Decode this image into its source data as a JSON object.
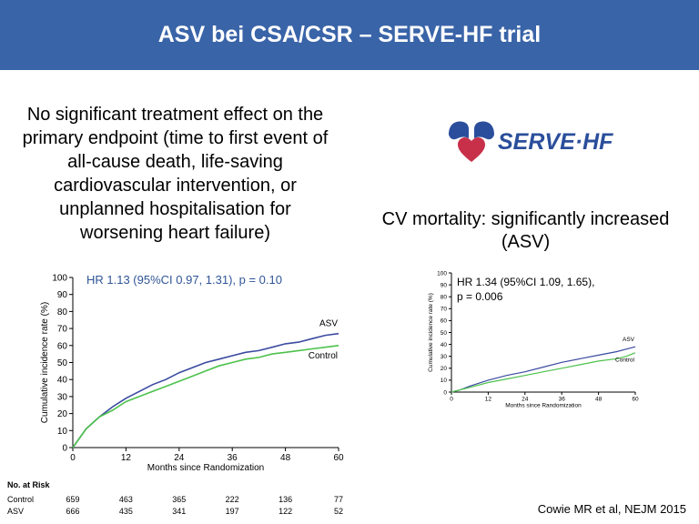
{
  "header": {
    "title": "ASV bei CSA/CSR – SERVE-HF trial"
  },
  "left_text": {
    "lines": [
      "No significant treatment effect on the",
      "primary endpoint (time to first event of",
      "all-cause death, life-saving",
      "cardiovascular intervention, or",
      "unplanned hospitalisation for",
      "worsening heart failure)"
    ]
  },
  "right_text": {
    "lines": [
      "CV mortality: significantly increased",
      "(ASV)"
    ]
  },
  "logo": {
    "text": "SERVE·HF"
  },
  "citation": "Cowie MR et al, NEJM 2015",
  "colors": {
    "header_bg": "#3a64a8",
    "asv": "#3b4aa0",
    "control": "#4cc24c",
    "annotation": "#2f5597",
    "logo_blue": "#2a4e9b",
    "logo_red": "#c8304a"
  },
  "chart_data": [
    {
      "type": "line",
      "annotation": "HR 1.13 (95%CI 0.97, 1.31), p = 0.10",
      "xlabel": "Months since Randomization",
      "ylabel": "Cumulative incidence rate (%)",
      "xlim": [
        0,
        60
      ],
      "ylim": [
        0,
        100
      ],
      "xticks": [
        0,
        12,
        24,
        36,
        48,
        60
      ],
      "yticks": [
        0,
        10,
        20,
        30,
        40,
        50,
        60,
        70,
        80,
        90,
        100
      ],
      "series": [
        {
          "name": "ASV",
          "x": [
            0,
            3,
            6,
            9,
            12,
            15,
            18,
            21,
            24,
            27,
            30,
            33,
            36,
            39,
            42,
            45,
            48,
            51,
            54,
            57,
            60
          ],
          "y": [
            0,
            11,
            18,
            24,
            29,
            33,
            37,
            40,
            44,
            47,
            50,
            52,
            54,
            56,
            57,
            59,
            61,
            62,
            64,
            66,
            67
          ]
        },
        {
          "name": "Control",
          "x": [
            0,
            3,
            6,
            9,
            12,
            15,
            18,
            21,
            24,
            27,
            30,
            33,
            36,
            39,
            42,
            45,
            48,
            51,
            54,
            57,
            60
          ],
          "y": [
            0,
            11,
            18,
            22,
            27,
            30,
            33,
            36,
            39,
            42,
            45,
            48,
            50,
            52,
            53,
            55,
            56,
            57,
            58,
            59,
            60
          ]
        }
      ],
      "at_risk": {
        "title": "No. at Risk",
        "rows": [
          {
            "label": "Control",
            "values": [
              "659",
              "463",
              "365",
              "222",
              "136",
              "77"
            ]
          },
          {
            "label": "ASV",
            "values": [
              "666",
              "435",
              "341",
              "197",
              "122",
              "52"
            ]
          }
        ]
      }
    },
    {
      "type": "line",
      "annotation_lines": [
        "HR 1.34 (95%CI 1.09, 1.65),",
        "p = 0.006"
      ],
      "xlabel": "Months since Randomization",
      "ylabel": "Cumulative incidence rate (%)",
      "xlim": [
        0,
        60
      ],
      "ylim": [
        0,
        100
      ],
      "xticks": [
        0,
        12,
        24,
        36,
        48,
        60
      ],
      "yticks": [
        0,
        10,
        20,
        30,
        40,
        50,
        60,
        70,
        80,
        90,
        100
      ],
      "series": [
        {
          "name": "ASV",
          "x": [
            0,
            3,
            6,
            12,
            18,
            24,
            30,
            36,
            42,
            48,
            54,
            57,
            60
          ],
          "y": [
            0,
            2,
            5,
            10,
            14,
            17,
            21,
            25,
            28,
            31,
            34,
            36,
            38
          ]
        },
        {
          "name": "Control",
          "x": [
            0,
            3,
            6,
            12,
            18,
            24,
            30,
            36,
            42,
            48,
            54,
            57,
            60
          ],
          "y": [
            0,
            2,
            4,
            8,
            11,
            14,
            17,
            20,
            23,
            26,
            28,
            30,
            33
          ]
        }
      ]
    }
  ]
}
